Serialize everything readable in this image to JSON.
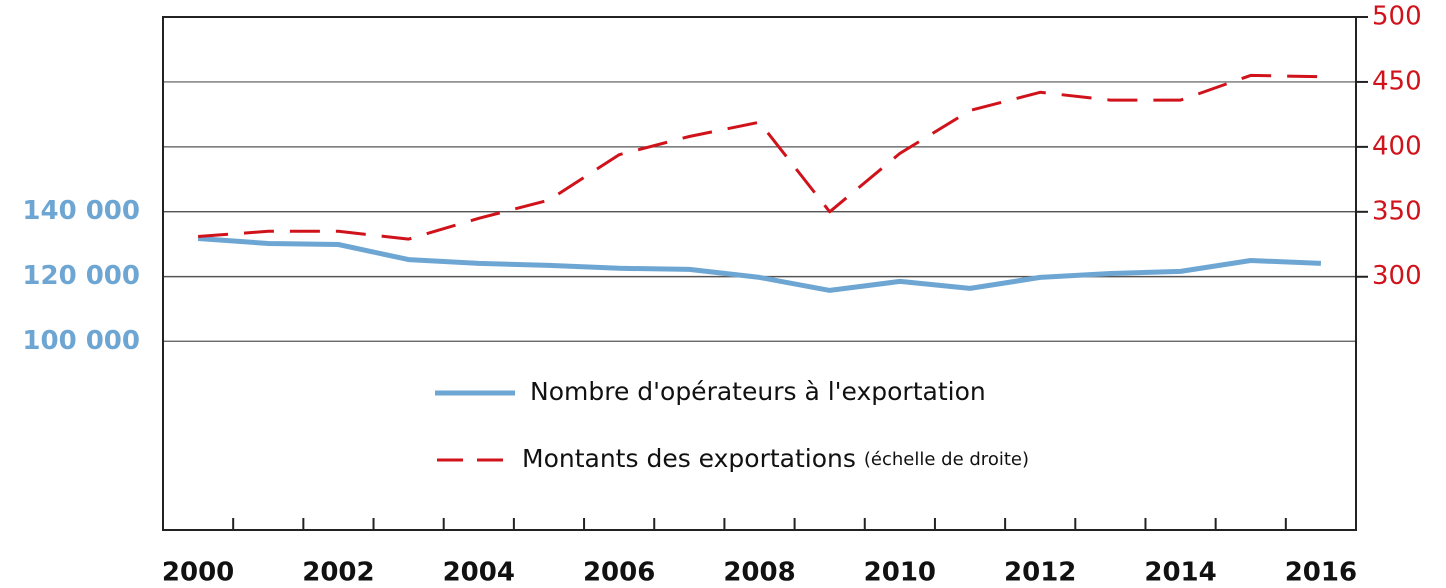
{
  "chart_data": {
    "type": "line",
    "categories": [
      "2000",
      null,
      "2002",
      null,
      "2004",
      null,
      "2006",
      null,
      "2008",
      null,
      "2010",
      null,
      "2012",
      null,
      "2014",
      null,
      "2016"
    ],
    "ylim": [
      41800,
      200000
    ],
    "yticks": [
      {
        "value": 100000,
        "label": "100 000"
      },
      {
        "value": 120000,
        "label": "120 000"
      },
      {
        "value": 140000,
        "label": "140 000"
      }
    ],
    "y2lim": [
      105,
      500
    ],
    "y2ticks": [
      300,
      350,
      400,
      450,
      500
    ],
    "grid": true,
    "series": [
      {
        "name": "Nombre d'opérateurs à l'exportation",
        "color": "#6ea6d3",
        "axis": "y",
        "values": [
          131700,
          130150,
          129850,
          125200,
          124000,
          123400,
          122500,
          122150,
          119700,
          115700,
          118450,
          116300,
          119700,
          120900,
          121550,
          124900,
          124000
        ]
      },
      {
        "name": "Montants des exportations",
        "legend_note": "(échelle de droite)",
        "color": "#d0121b",
        "axis": "y2",
        "dashed": true,
        "values": [
          331,
          335,
          335,
          329,
          345,
          359,
          394,
          408,
          419,
          350,
          395,
          428,
          442,
          436,
          436,
          455,
          454
        ]
      }
    ]
  }
}
